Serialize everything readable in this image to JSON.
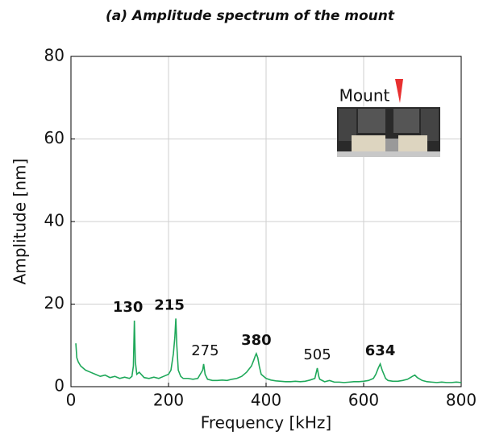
{
  "chart_data": {
    "type": "line",
    "title": "(a) Amplitude spectrum of the mount",
    "x_label": "Frequency [kHz]",
    "y_label": "Amplitude [nm]",
    "inset_label": "Mount",
    "xlim": [
      0,
      800
    ],
    "ylim": [
      0,
      80
    ],
    "xticks": [
      0,
      200,
      400,
      600,
      800
    ],
    "yticks": [
      0,
      20,
      40,
      60,
      80
    ],
    "grid": true,
    "series": [
      {
        "color": "#1fa85a",
        "x": [
          10,
          12,
          15,
          20,
          30,
          40,
          50,
          60,
          70,
          80,
          90,
          100,
          110,
          120,
          125,
          128,
          130,
          132,
          135,
          140,
          150,
          160,
          170,
          180,
          190,
          200,
          205,
          210,
          213,
          215,
          217,
          220,
          225,
          230,
          240,
          250,
          260,
          270,
          272,
          275,
          280,
          290,
          300,
          310,
          320,
          330,
          340,
          350,
          360,
          370,
          375,
          378,
          380,
          383,
          386,
          390,
          400,
          410,
          420,
          430,
          440,
          450,
          460,
          470,
          480,
          490,
          500,
          503,
          505,
          508,
          510,
          520,
          530,
          540,
          550,
          560,
          570,
          580,
          590,
          600,
          610,
          620,
          625,
          630,
          634,
          638,
          645,
          650,
          660,
          670,
          680,
          690,
          700,
          705,
          710,
          720,
          730,
          740,
          750,
          760,
          770,
          780,
          790,
          800
        ],
        "values": [
          10.5,
          7,
          6,
          5,
          4,
          3.5,
          3,
          2.5,
          2.8,
          2.2,
          2.5,
          2,
          2.3,
          2,
          2.5,
          5,
          16,
          6,
          3,
          3.5,
          2.2,
          2,
          2.3,
          2,
          2.5,
          3,
          4,
          8,
          12,
          16.5,
          10,
          4,
          2.5,
          2,
          2,
          1.8,
          2,
          4,
          5.5,
          3,
          1.8,
          1.5,
          1.5,
          1.6,
          1.5,
          1.8,
          2,
          2.5,
          3.5,
          5,
          6.5,
          7.5,
          8,
          7,
          5,
          3,
          2,
          1.6,
          1.4,
          1.3,
          1.2,
          1.2,
          1.3,
          1.2,
          1.3,
          1.6,
          2,
          3.5,
          4.5,
          2.5,
          1.8,
          1.2,
          1.5,
          1.1,
          1.1,
          1,
          1.1,
          1.2,
          1.2,
          1.3,
          1.5,
          2,
          3,
          4.5,
          5.5,
          4,
          2,
          1.5,
          1.3,
          1.3,
          1.5,
          1.8,
          2.5,
          2.8,
          2.2,
          1.5,
          1.2,
          1.1,
          1,
          1.1,
          1,
          1,
          1.1,
          1
        ]
      }
    ],
    "peak_labels": [
      130,
      215,
      275,
      380,
      505,
      634
    ],
    "peak_label_bold": [
      true,
      true,
      false,
      true,
      false,
      true
    ]
  }
}
